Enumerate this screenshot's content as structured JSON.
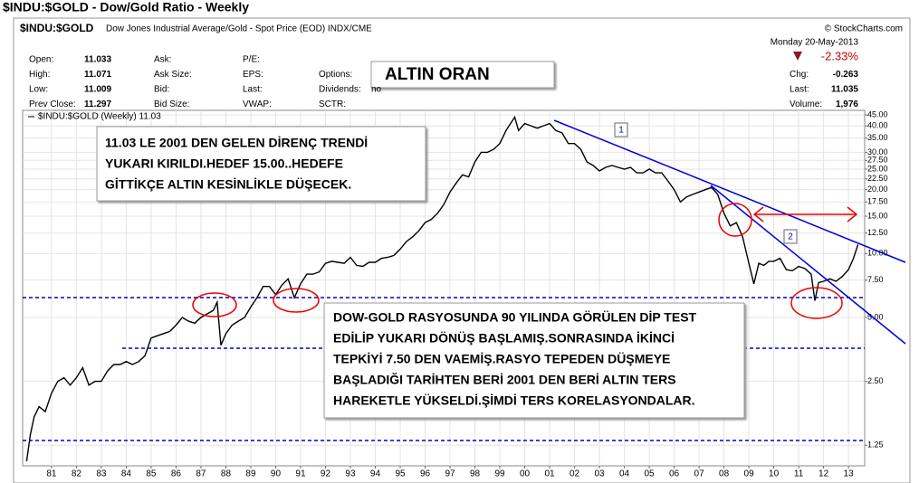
{
  "header": {
    "title": "$INDU:$GOLD - Dow/Gold Ratio - Weekly",
    "symbol": "$INDU:$GOLD",
    "description": "Dow Jones Industrial Average/Gold - Spot Price (EOD) INDX/CME",
    "copyright": "© StockCharts.com",
    "date": "Monday  20-May-2013",
    "change_pct": "-2.33%",
    "fields": [
      [
        "Open:",
        "11.033"
      ],
      [
        "High:",
        "11.071"
      ],
      [
        "Low:",
        "11.009"
      ],
      [
        "Prev Close:",
        "11.297"
      ],
      [
        "Ask:",
        ""
      ],
      [
        "Ask Size:",
        ""
      ],
      [
        "Bid:",
        ""
      ],
      [
        "Bid Size:",
        ""
      ],
      [
        "P/E:",
        ""
      ],
      [
        "EPS:",
        ""
      ],
      [
        "Last:",
        ""
      ],
      [
        "VWAP:",
        ""
      ],
      [
        "Options:",
        ""
      ],
      [
        "Dividends:",
        "no"
      ],
      [
        "SCTR:",
        ""
      ],
      [
        "Chg:",
        "-0.263"
      ],
      [
        "Last:",
        "11.035"
      ],
      [
        "Volume:",
        "1,976"
      ]
    ]
  },
  "chart_data": {
    "type": "line",
    "log_y": true,
    "xlim": [
      1979.84,
      2013.65
    ],
    "ylim": [
      1,
      47.3
    ],
    "xticks": [
      {
        "value": 1981,
        "label": "81"
      },
      {
        "value": 1982,
        "label": "82"
      },
      {
        "value": 1983,
        "label": "83"
      },
      {
        "value": 1984,
        "label": "84"
      },
      {
        "value": 1985,
        "label": "85"
      },
      {
        "value": 1986,
        "label": "86"
      },
      {
        "value": 1987,
        "label": "87"
      },
      {
        "value": 1988,
        "label": "88"
      },
      {
        "value": 1989,
        "label": "89"
      },
      {
        "value": 1990,
        "label": "90"
      },
      {
        "value": 1991,
        "label": "91"
      },
      {
        "value": 1992,
        "label": "92"
      },
      {
        "value": 1993,
        "label": "93"
      },
      {
        "value": 1994,
        "label": "94"
      },
      {
        "value": 1995,
        "label": "95"
      },
      {
        "value": 1996,
        "label": "96"
      },
      {
        "value": 1997,
        "label": "97"
      },
      {
        "value": 1998,
        "label": "98"
      },
      {
        "value": 1999,
        "label": "99"
      },
      {
        "value": 2000,
        "label": "00"
      },
      {
        "value": 2001,
        "label": "01"
      },
      {
        "value": 2002,
        "label": "02"
      },
      {
        "value": 2003,
        "label": "03"
      },
      {
        "value": 2004,
        "label": "04"
      },
      {
        "value": 2005,
        "label": "05"
      },
      {
        "value": 2006,
        "label": "06"
      },
      {
        "value": 2007,
        "label": "07"
      },
      {
        "value": 2008,
        "label": "08"
      },
      {
        "value": 2009,
        "label": "09"
      },
      {
        "value": 2010,
        "label": "10"
      },
      {
        "value": 2011,
        "label": "11"
      },
      {
        "value": 2012,
        "label": "12"
      },
      {
        "value": 2013,
        "label": "13"
      }
    ],
    "yticks": [
      {
        "value": 45,
        "label": "45.00"
      },
      {
        "value": 40,
        "label": "40.00"
      },
      {
        "value": 35,
        "label": "35.00"
      },
      {
        "value": 30,
        "label": "30.00"
      },
      {
        "value": 27.5,
        "label": "27.50"
      },
      {
        "value": 25,
        "label": "25.00"
      },
      {
        "value": 22.5,
        "label": "22.50"
      },
      {
        "value": 20,
        "label": "20.00"
      },
      {
        "value": 17.5,
        "label": "17.50"
      },
      {
        "value": 15,
        "label": "15.00"
      },
      {
        "value": 12.5,
        "label": "12.50"
      },
      {
        "value": 10,
        "label": "10.00"
      },
      {
        "value": 7.5,
        "label": "7.50"
      },
      {
        "value": 5,
        "label": "5.00"
      },
      {
        "value": 2.5,
        "label": "2.50"
      },
      {
        "value": 1.25,
        "label": "1.25"
      }
    ],
    "grid": true,
    "x": [
      1980.0,
      1980.15,
      1980.3,
      1980.5,
      1980.75,
      1981.0,
      1981.25,
      1981.5,
      1981.75,
      1982.0,
      1982.25,
      1982.5,
      1982.75,
      1983.0,
      1983.25,
      1983.5,
      1983.75,
      1984.0,
      1984.25,
      1984.5,
      1984.75,
      1985.0,
      1985.25,
      1985.5,
      1985.75,
      1986.0,
      1986.25,
      1986.5,
      1986.75,
      1987.0,
      1987.25,
      1987.5,
      1987.65,
      1987.8,
      1988.0,
      1988.25,
      1988.5,
      1988.75,
      1989.0,
      1989.25,
      1989.5,
      1989.75,
      1990.0,
      1990.25,
      1990.5,
      1990.75,
      1991.0,
      1991.25,
      1991.5,
      1991.75,
      1992.0,
      1992.25,
      1992.5,
      1992.75,
      1993.0,
      1993.25,
      1993.5,
      1993.75,
      1994.0,
      1994.25,
      1994.5,
      1994.75,
      1995.0,
      1995.25,
      1995.5,
      1995.75,
      1996.0,
      1996.25,
      1996.5,
      1996.75,
      1997.0,
      1997.25,
      1997.5,
      1997.75,
      1998.0,
      1998.25,
      1998.5,
      1998.75,
      1999.0,
      1999.25,
      1999.6,
      1999.75,
      2000.0,
      2000.25,
      2000.5,
      2000.75,
      2001.0,
      2001.25,
      2001.5,
      2001.75,
      2002.0,
      2002.25,
      2002.5,
      2002.75,
      2003.0,
      2003.25,
      2003.5,
      2003.75,
      2004.0,
      2004.25,
      2004.5,
      2004.75,
      2005.0,
      2005.25,
      2005.5,
      2005.75,
      2006.0,
      2006.25,
      2006.5,
      2006.75,
      2007.0,
      2007.25,
      2007.5,
      2007.75,
      2008.0,
      2008.25,
      2008.5,
      2008.75,
      2009.0,
      2009.2,
      2009.4,
      2009.6,
      2009.8,
      2010.0,
      2010.25,
      2010.5,
      2010.75,
      2011.0,
      2011.25,
      2011.5,
      2011.65,
      2011.8,
      2012.0,
      2012.25,
      2012.5,
      2012.75,
      2013.0,
      2013.2,
      2013.38
    ],
    "series": [
      {
        "name": "$INDU:$GOLD (Weekly) 11.03",
        "color": "#000000",
        "values": [
          1.05,
          1.4,
          1.7,
          1.9,
          1.8,
          2.2,
          2.5,
          2.6,
          2.4,
          2.6,
          2.9,
          2.4,
          2.5,
          2.5,
          2.8,
          3.0,
          3.0,
          3.1,
          3.0,
          3.1,
          3.3,
          4.0,
          4.1,
          4.2,
          4.3,
          4.6,
          5.0,
          4.8,
          4.7,
          5.0,
          5.2,
          5.4,
          5.9,
          3.7,
          4.2,
          4.6,
          4.8,
          5.0,
          5.6,
          6.2,
          7.0,
          7.0,
          6.4,
          7.1,
          7.6,
          6.2,
          7.2,
          8.0,
          8.0,
          8.2,
          9.0,
          9.2,
          9.1,
          9.0,
          9.6,
          8.8,
          8.7,
          9.1,
          9.1,
          9.5,
          9.6,
          9.8,
          10.5,
          11.4,
          12.0,
          12.8,
          14.0,
          14.5,
          15.5,
          17.0,
          19.5,
          21.5,
          23.5,
          23.0,
          27.0,
          30.0,
          30.0,
          31.0,
          33.0,
          38.0,
          44.0,
          38.0,
          41.0,
          40.0,
          39.0,
          40.0,
          41.0,
          38.0,
          37.0,
          33.0,
          33.0,
          31.0,
          27.0,
          26.0,
          24.5,
          25.5,
          26.0,
          25.5,
          25.0,
          25.5,
          24.0,
          24.0,
          25.0,
          24.0,
          24.0,
          22.0,
          20.0,
          17.5,
          18.5,
          19.0,
          19.5,
          20.0,
          20.5,
          19.0,
          15.5,
          13.5,
          14.0,
          12.0,
          9.0,
          7.2,
          9.0,
          8.8,
          9.2,
          9.2,
          9.5,
          8.4,
          8.3,
          8.7,
          8.5,
          8.0,
          6.0,
          7.3,
          7.4,
          7.6,
          7.4,
          7.8,
          8.4,
          9.5,
          11.03
        ]
      }
    ],
    "annotations": {
      "box_title": "ALTIN ORAN",
      "trend_1": "1",
      "trend_2": "2",
      "note_1": [
        "11.03 LE 2001 DEN GELEN DİRENÇ TRENDİ",
        "YUKARI KIRILDI.HEDEF 15.00..HEDEFE",
        "GİTTİKÇE ALTIN KESİNLİKLE DÜŞECEK."
      ],
      "note_2": [
        "DOW-GOLD RASYOSUNDA 90 YILINDA GÖRÜLEN DİP TEST",
        "EDİLİP YUKARI DÖNÜŞ BAŞLAMIŞ.SONRASINDA İKİNCİ",
        "TEPKİYİ 7.50 DEN VAEMİŞ.RASYO TEPEDEN DÜŞMEYE",
        "BAŞLADIĞI TARİHTEN BERİ 2001 DEN BERİ ALTIN TERS",
        "HAREKETLE YÜKSELDİ.ŞİMDİ TERS KORELASYONDALAR."
      ]
    }
  }
}
